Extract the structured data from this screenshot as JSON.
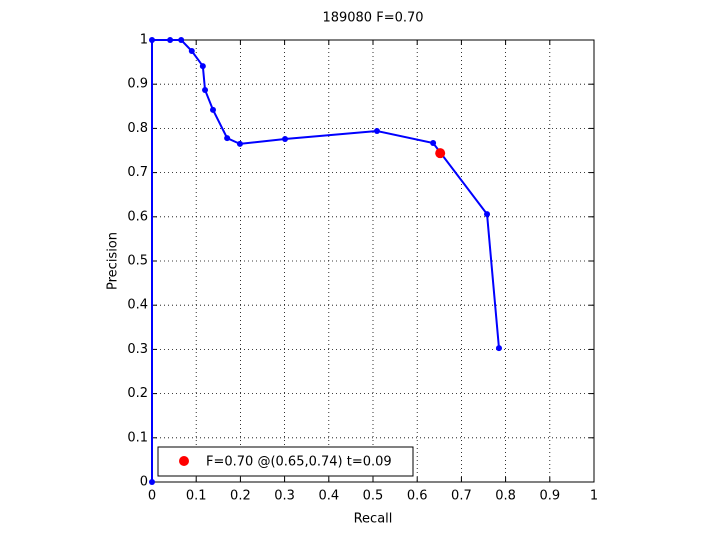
{
  "chart_data": {
    "type": "line",
    "title": "189080 F=0.70",
    "x_label": "Recall",
    "y_label": "Precision",
    "xlim": [
      0,
      1
    ],
    "ylim": [
      0,
      1
    ],
    "xticks": [
      0,
      0.1,
      0.2,
      0.3,
      0.4,
      0.5,
      0.6,
      0.7,
      0.8,
      0.9,
      1
    ],
    "yticks": [
      0,
      0.1,
      0.2,
      0.3,
      0.4,
      0.5,
      0.6,
      0.7,
      0.8,
      0.9,
      1
    ],
    "grid": true,
    "legend": "lower left",
    "series": [
      {
        "color": "#0000ff",
        "style": "line-markers",
        "x": [
          0,
          0,
          0.041,
          0.066,
          0.09,
          0.115,
          0.12,
          0.138,
          0.17,
          0.199,
          0.301,
          0.509,
          0.636,
          0.758,
          0.785
        ],
        "values": [
          0,
          1,
          1,
          1,
          0.975,
          0.941,
          0.887,
          0.842,
          0.778,
          0.765,
          0.776,
          0.794,
          0.767,
          0.606,
          0.303
        ]
      },
      {
        "name": "F=0.70 @(0.65,0.74) t=0.09",
        "color": "#ff0000",
        "style": "markers",
        "x": [
          0.652
        ],
        "values": [
          0.744
        ]
      }
    ]
  }
}
